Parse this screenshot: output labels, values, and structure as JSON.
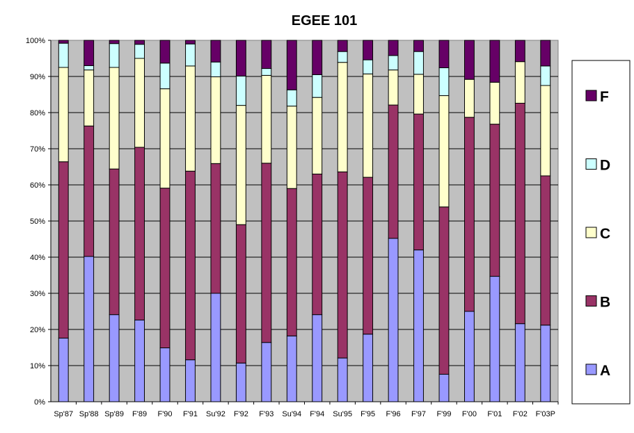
{
  "chart_data": {
    "type": "bar",
    "stacked": true,
    "percent": true,
    "title": "EGEE 101",
    "xlabel": "",
    "ylabel": "",
    "ylim": [
      0,
      100
    ],
    "yticks": [
      "0%",
      "10%",
      "20%",
      "30%",
      "40%",
      "50%",
      "60%",
      "70%",
      "80%",
      "90%",
      "100%"
    ],
    "grid": true,
    "legend_position": "right",
    "categories": [
      "Sp'87",
      "Sp'88",
      "Sp'89",
      "F'89",
      "F'90",
      "F'91",
      "Su'92",
      "F'92",
      "F'93",
      "Su'94",
      "F'94",
      "Su'95",
      "F'95",
      "F'96",
      "F'97",
      "F'99",
      "F'00",
      "F'01",
      "F'02",
      "F'03P"
    ],
    "series": [
      {
        "name": "A",
        "color": "#9999ff",
        "values": [
          17.6,
          40.2,
          24.1,
          22.6,
          14.9,
          11.6,
          30.0,
          10.7,
          16.4,
          18.2,
          24.1,
          12.1,
          18.7,
          45.2,
          42.0,
          7.6,
          25.0,
          34.7,
          21.6,
          21.2
        ]
      },
      {
        "name": "B",
        "color": "#993366",
        "values": [
          48.8,
          36.1,
          40.3,
          47.8,
          44.2,
          52.2,
          35.9,
          38.3,
          49.6,
          40.8,
          38.9,
          51.5,
          43.4,
          36.9,
          37.6,
          46.3,
          53.7,
          42.1,
          61.0,
          41.3
        ]
      },
      {
        "name": "C",
        "color": "#ffffcc",
        "values": [
          26.1,
          15.5,
          28.1,
          24.6,
          27.5,
          29.1,
          24.0,
          33.0,
          24.3,
          22.8,
          21.2,
          30.3,
          28.6,
          9.7,
          11.0,
          30.8,
          10.5,
          11.6,
          11.5,
          25.0
        ]
      },
      {
        "name": "D",
        "color": "#ccffff",
        "values": [
          6.7,
          1.2,
          6.6,
          3.9,
          7.1,
          6.1,
          4.1,
          8.1,
          1.9,
          4.5,
          6.3,
          3.0,
          3.9,
          4.0,
          6.3,
          7.7,
          0.0,
          0.0,
          0.0,
          5.4
        ]
      },
      {
        "name": "F",
        "color": "#660066",
        "values": [
          0.8,
          7.0,
          0.9,
          1.1,
          6.3,
          1.0,
          6.0,
          9.9,
          7.8,
          13.7,
          9.5,
          3.1,
          5.4,
          4.2,
          3.1,
          7.6,
          10.8,
          11.6,
          5.9,
          7.1
        ]
      }
    ]
  }
}
